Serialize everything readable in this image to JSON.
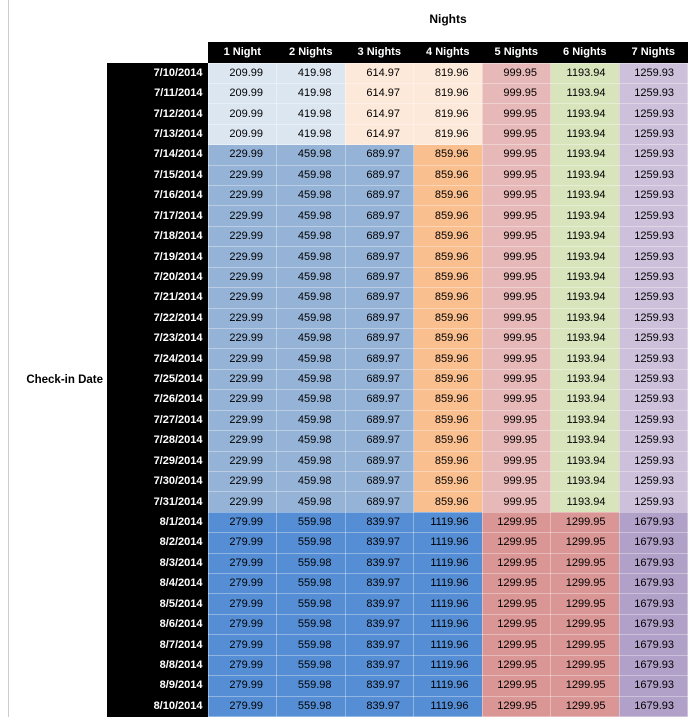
{
  "page": {
    "title": "Nights",
    "row_axis_label": "Check-in Date"
  },
  "chart_data": {
    "type": "heatmap",
    "title": "Nights",
    "x_axis_label": "Nights",
    "y_axis_label": "Check-in Date",
    "columns": [
      "1 Night",
      "2 Nights",
      "3 Nights",
      "4 Nights",
      "5 Nights",
      "6 Nights",
      "7 Nights"
    ],
    "header_bg": "#000000",
    "header_fg": "#FFFFFF",
    "palette": {
      "blue_lightest": "#DCE6F1",
      "blue_medium": "#95B3D7",
      "blue_dark": "#558ED5",
      "orange_lightest": "#FDE9D9",
      "orange_medium": "#FABF8F",
      "red_light": "#E6B8B7",
      "red_dark": "#D99694",
      "green_light": "#D8E4BC",
      "purple_light": "#CCC0DA",
      "purple_dark": "#B1A0C7"
    },
    "row_groups": [
      {
        "dates": [
          "7/10/2014",
          "7/11/2014",
          "7/12/2014",
          "7/13/2014"
        ],
        "values": [
          209.99,
          419.98,
          614.97,
          819.96,
          999.95,
          1193.94,
          1259.93
        ],
        "cell_colors": [
          "blue_lightest",
          "blue_lightest",
          "orange_lightest",
          "orange_lightest",
          "red_light",
          "green_light",
          "purple_light"
        ]
      },
      {
        "dates": [
          "7/14/2014",
          "7/15/2014",
          "7/16/2014",
          "7/17/2014",
          "7/18/2014",
          "7/19/2014",
          "7/20/2014",
          "7/21/2014",
          "7/22/2014",
          "7/23/2014",
          "7/24/2014",
          "7/25/2014",
          "7/26/2014",
          "7/27/2014",
          "7/28/2014",
          "7/29/2014",
          "7/30/2014",
          "7/31/2014"
        ],
        "values": [
          229.99,
          459.98,
          689.97,
          859.96,
          999.95,
          1193.94,
          1259.93
        ],
        "cell_colors": [
          "blue_medium",
          "blue_medium",
          "blue_medium",
          "orange_medium",
          "red_light",
          "green_light",
          "purple_light"
        ]
      },
      {
        "dates": [
          "8/1/2014",
          "8/2/2014",
          "8/3/2014",
          "8/4/2014",
          "8/5/2014",
          "8/6/2014",
          "8/7/2014",
          "8/8/2014",
          "8/9/2014",
          "8/10/2014"
        ],
        "values": [
          279.99,
          559.98,
          839.97,
          1119.96,
          1299.95,
          1299.95,
          1679.93
        ],
        "cell_colors": [
          "blue_dark",
          "blue_dark",
          "blue_dark",
          "blue_dark",
          "red_dark",
          "red_dark",
          "purple_dark"
        ]
      }
    ]
  }
}
